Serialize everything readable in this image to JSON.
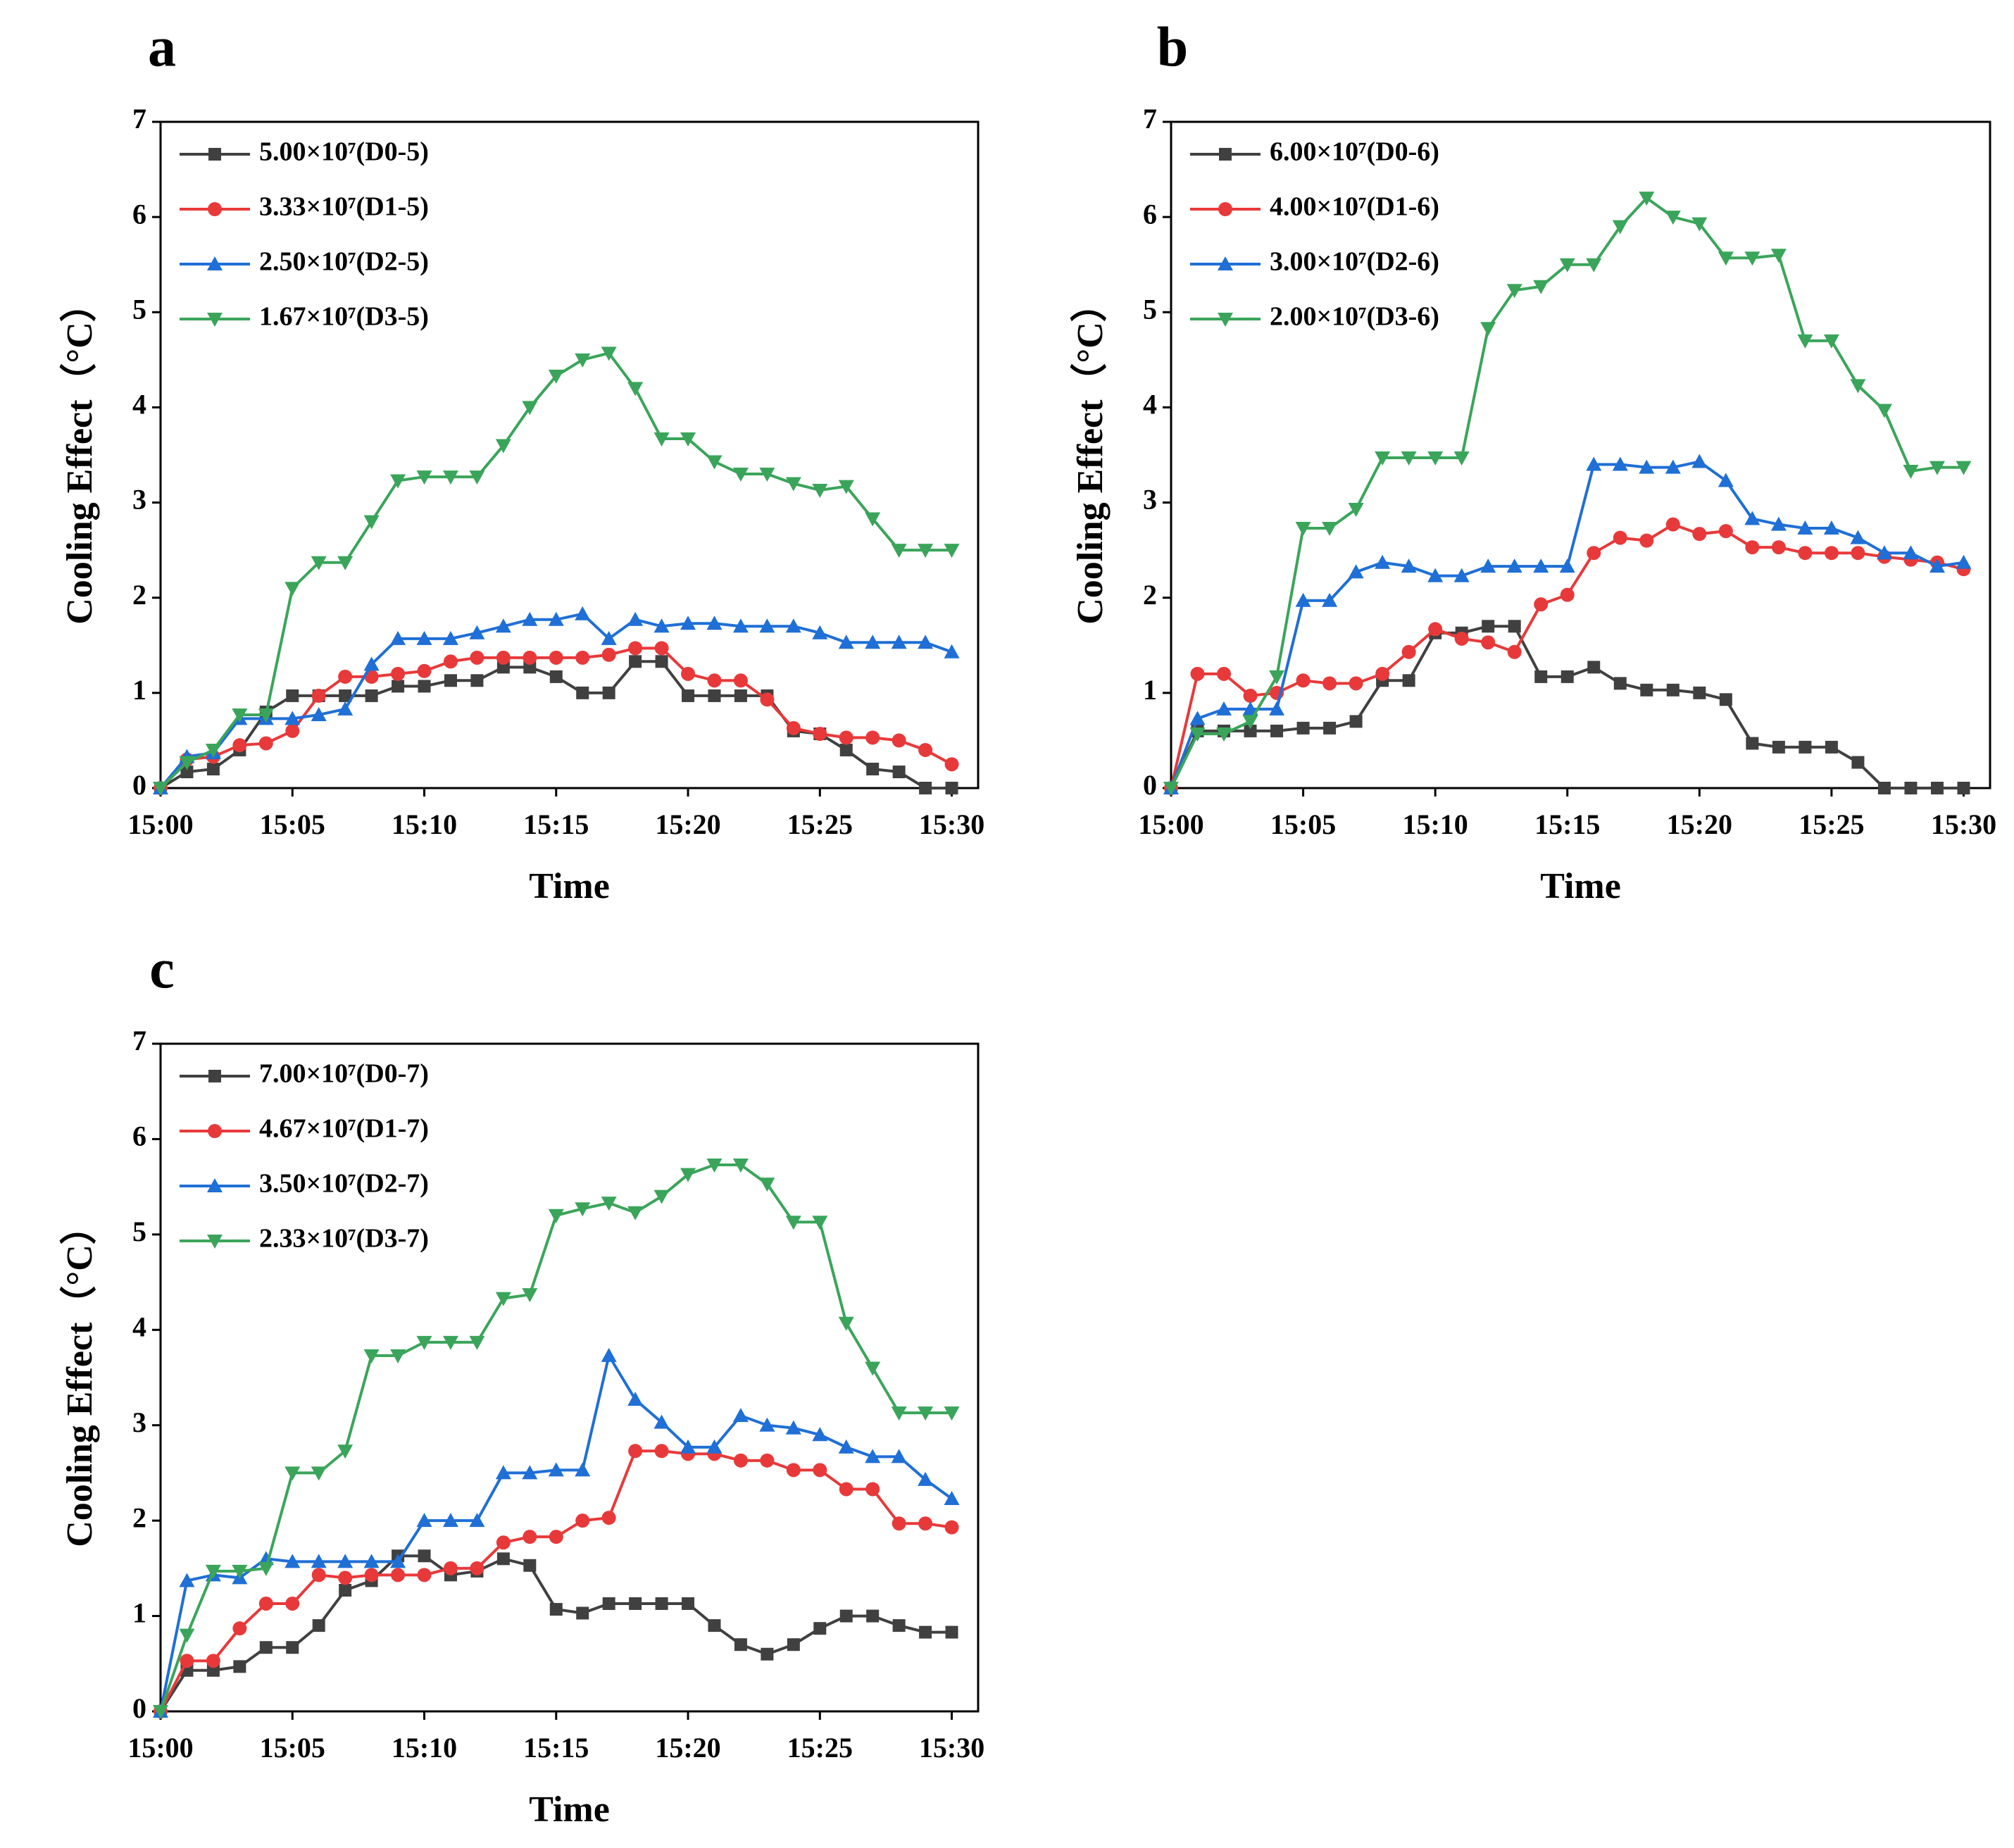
{
  "chart_data": [
    {
      "type": "line",
      "title": "a",
      "xlabel": "Time",
      "ylabel": "Cooling Effect（°C）",
      "x": [
        0,
        1,
        2,
        3,
        4,
        5,
        6,
        7,
        8,
        9,
        10,
        11,
        12,
        13,
        14,
        15,
        16,
        17,
        18,
        19,
        20,
        21,
        22,
        23,
        24,
        25,
        26,
        27,
        28,
        29,
        30
      ],
      "xlim": [
        0,
        31
      ],
      "ylim": [
        0,
        7
      ],
      "xticks": [
        {
          "value": 0,
          "label": "15:00"
        },
        {
          "value": 5,
          "label": "15:05"
        },
        {
          "value": 10,
          "label": "15:10"
        },
        {
          "value": 15,
          "label": "15:15"
        },
        {
          "value": 20,
          "label": "15:20"
        },
        {
          "value": 25,
          "label": "15:25"
        },
        {
          "value": 30,
          "label": "15:30"
        }
      ],
      "yticks": [
        0,
        1,
        2,
        3,
        4,
        5,
        6,
        7
      ],
      "legend": "upper left",
      "series": [
        {
          "name": "5.00×10⁷(D0-5)",
          "color": "#404040",
          "marker": "square",
          "values": [
            0,
            0.17,
            0.2,
            0.4,
            0.8,
            0.97,
            0.97,
            0.97,
            0.97,
            1.07,
            1.07,
            1.13,
            1.13,
            1.27,
            1.27,
            1.17,
            1.0,
            1.0,
            1.33,
            1.33,
            0.97,
            0.97,
            0.97,
            0.97,
            0.6,
            0.57,
            0.4,
            0.2,
            0.17,
            0,
            0
          ]
        },
        {
          "name": "3.33×10⁷(D1-5)",
          "color": "#e8393a",
          "marker": "circle",
          "values": [
            0,
            0.3,
            0.33,
            0.45,
            0.47,
            0.6,
            0.97,
            1.17,
            1.17,
            1.2,
            1.23,
            1.33,
            1.37,
            1.37,
            1.37,
            1.37,
            1.37,
            1.4,
            1.47,
            1.47,
            1.2,
            1.13,
            1.13,
            0.93,
            0.63,
            0.57,
            0.53,
            0.53,
            0.5,
            0.4,
            0.25
          ]
        },
        {
          "name": "2.50×10⁷(D2-5)",
          "color": "#1f6fd6",
          "marker": "triangle-up",
          "values": [
            0,
            0.33,
            0.37,
            0.73,
            0.73,
            0.73,
            0.77,
            0.83,
            1.3,
            1.57,
            1.57,
            1.57,
            1.63,
            1.7,
            1.77,
            1.77,
            1.83,
            1.57,
            1.77,
            1.7,
            1.73,
            1.73,
            1.7,
            1.7,
            1.7,
            1.63,
            1.53,
            1.53,
            1.53,
            1.53,
            1.43
          ]
        },
        {
          "name": "1.67×10⁷(D3-5)",
          "color": "#3aa55a",
          "marker": "triangle-down",
          "values": [
            0,
            0.27,
            0.4,
            0.77,
            0.77,
            2.1,
            2.37,
            2.37,
            2.8,
            3.23,
            3.27,
            3.27,
            3.27,
            3.6,
            4.0,
            4.33,
            4.5,
            4.57,
            4.2,
            3.67,
            3.67,
            3.43,
            3.3,
            3.3,
            3.2,
            3.13,
            3.17,
            2.83,
            2.5,
            2.5,
            2.5
          ]
        }
      ]
    },
    {
      "type": "line",
      "title": "b",
      "xlabel": "Time",
      "ylabel": "Cooling Effect（°C）",
      "x": [
        0,
        1,
        2,
        3,
        4,
        5,
        6,
        7,
        8,
        9,
        10,
        11,
        12,
        13,
        14,
        15,
        16,
        17,
        18,
        19,
        20,
        21,
        22,
        23,
        24,
        25,
        26,
        27,
        28,
        29,
        30
      ],
      "xlim": [
        0,
        31
      ],
      "ylim": [
        0,
        7
      ],
      "xticks": [
        {
          "value": 0,
          "label": "15:00"
        },
        {
          "value": 5,
          "label": "15:05"
        },
        {
          "value": 10,
          "label": "15:10"
        },
        {
          "value": 15,
          "label": "15:15"
        },
        {
          "value": 20,
          "label": "15:20"
        },
        {
          "value": 25,
          "label": "15:25"
        },
        {
          "value": 30,
          "label": "15:30"
        }
      ],
      "yticks": [
        0,
        1,
        2,
        3,
        4,
        5,
        6,
        7
      ],
      "legend": "upper left",
      "series": [
        {
          "name": "6.00×10⁷(D0-6)",
          "color": "#404040",
          "marker": "square",
          "values": [
            0,
            0.6,
            0.6,
            0.6,
            0.6,
            0.63,
            0.63,
            0.7,
            1.13,
            1.13,
            1.63,
            1.63,
            1.7,
            1.7,
            1.17,
            1.17,
            1.27,
            1.1,
            1.03,
            1.03,
            1.0,
            0.93,
            0.47,
            0.43,
            0.43,
            0.43,
            0.27,
            0,
            0,
            0,
            0
          ]
        },
        {
          "name": "4.00×10⁷(D1-6)",
          "color": "#e8393a",
          "marker": "circle",
          "values": [
            0,
            1.2,
            1.2,
            0.97,
            1.0,
            1.13,
            1.1,
            1.1,
            1.2,
            1.43,
            1.67,
            1.57,
            1.53,
            1.43,
            1.93,
            2.03,
            2.47,
            2.63,
            2.6,
            2.77,
            2.67,
            2.7,
            2.53,
            2.53,
            2.47,
            2.47,
            2.47,
            2.43,
            2.4,
            2.37,
            2.3
          ]
        },
        {
          "name": "3.00×10⁷(D2-6)",
          "color": "#1f6fd6",
          "marker": "triangle-up",
          "values": [
            0,
            0.73,
            0.83,
            0.83,
            0.83,
            1.97,
            1.97,
            2.27,
            2.37,
            2.33,
            2.23,
            2.23,
            2.33,
            2.33,
            2.33,
            2.33,
            3.4,
            3.4,
            3.37,
            3.37,
            3.43,
            3.23,
            2.83,
            2.77,
            2.73,
            2.73,
            2.63,
            2.47,
            2.47,
            2.33,
            2.37
          ]
        },
        {
          "name": "2.00×10⁷(D3-6)",
          "color": "#3aa55a",
          "marker": "triangle-down",
          "values": [
            0,
            0.57,
            0.57,
            0.7,
            1.17,
            2.73,
            2.73,
            2.93,
            3.47,
            3.47,
            3.47,
            3.47,
            4.83,
            5.23,
            5.27,
            5.5,
            5.5,
            5.9,
            6.2,
            6.0,
            5.93,
            5.57,
            5.57,
            5.6,
            4.7,
            4.7,
            4.23,
            3.97,
            3.33,
            3.37,
            3.37
          ]
        }
      ]
    },
    {
      "type": "line",
      "title": "c",
      "xlabel": "Time",
      "ylabel": "Cooling Effect（°C）",
      "x": [
        0,
        1,
        2,
        3,
        4,
        5,
        6,
        7,
        8,
        9,
        10,
        11,
        12,
        13,
        14,
        15,
        16,
        17,
        18,
        19,
        20,
        21,
        22,
        23,
        24,
        25,
        26,
        27,
        28,
        29,
        30
      ],
      "xlim": [
        0,
        31
      ],
      "ylim": [
        0,
        7
      ],
      "xticks": [
        {
          "value": 0,
          "label": "15:00"
        },
        {
          "value": 5,
          "label": "15:05"
        },
        {
          "value": 10,
          "label": "15:10"
        },
        {
          "value": 15,
          "label": "15:15"
        },
        {
          "value": 20,
          "label": "15:20"
        },
        {
          "value": 25,
          "label": "15:25"
        },
        {
          "value": 30,
          "label": "15:30"
        }
      ],
      "yticks": [
        0,
        1,
        2,
        3,
        4,
        5,
        6,
        7
      ],
      "legend": "upper left",
      "series": [
        {
          "name": "7.00×10⁷(D0-7)",
          "color": "#404040",
          "marker": "square",
          "values": [
            0,
            0.43,
            0.43,
            0.47,
            0.67,
            0.67,
            0.9,
            1.27,
            1.37,
            1.63,
            1.63,
            1.43,
            1.47,
            1.6,
            1.53,
            1.07,
            1.03,
            1.13,
            1.13,
            1.13,
            1.13,
            0.9,
            0.7,
            0.6,
            0.7,
            0.87,
            1.0,
            1.0,
            0.9,
            0.83,
            0.83
          ]
        },
        {
          "name": "4.67×10⁷(D1-7)",
          "color": "#e8393a",
          "marker": "circle",
          "values": [
            0,
            0.53,
            0.53,
            0.87,
            1.13,
            1.13,
            1.43,
            1.4,
            1.43,
            1.43,
            1.43,
            1.5,
            1.5,
            1.77,
            1.83,
            1.83,
            2.0,
            2.03,
            2.73,
            2.73,
            2.7,
            2.7,
            2.63,
            2.63,
            2.53,
            2.53,
            2.33,
            2.33,
            1.97,
            1.97,
            1.93
          ]
        },
        {
          "name": "3.50×10⁷(D2-7)",
          "color": "#1f6fd6",
          "marker": "triangle-up",
          "values": [
            0,
            1.37,
            1.43,
            1.4,
            1.6,
            1.57,
            1.57,
            1.57,
            1.57,
            1.57,
            2.0,
            2.0,
            2.0,
            2.5,
            2.5,
            2.53,
            2.53,
            3.73,
            3.27,
            3.03,
            2.77,
            2.77,
            3.1,
            3.0,
            2.97,
            2.9,
            2.77,
            2.67,
            2.67,
            2.43,
            2.23
          ]
        },
        {
          "name": "2.33×10⁷(D3-7)",
          "color": "#3aa55a",
          "marker": "triangle-down",
          "values": [
            0,
            0.8,
            1.47,
            1.47,
            1.5,
            2.5,
            2.5,
            2.73,
            3.73,
            3.73,
            3.87,
            3.87,
            3.87,
            4.33,
            4.37,
            5.2,
            5.27,
            5.33,
            5.23,
            5.4,
            5.63,
            5.73,
            5.73,
            5.53,
            5.13,
            5.13,
            4.07,
            3.6,
            3.13,
            3.13,
            3.13
          ]
        }
      ]
    }
  ]
}
